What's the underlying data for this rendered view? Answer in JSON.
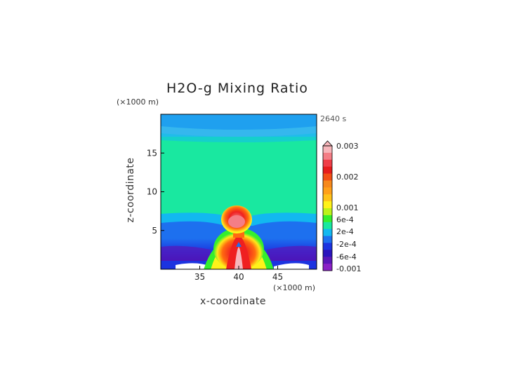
{
  "chart_data": {
    "type": "heatmap",
    "title": "H2O-g Mixing Ratio",
    "xlabel": "x-coordinate",
    "ylabel": "z-coordinate",
    "x_multiplier": "(×1000 m)",
    "y_multiplier": "(×1000 m)",
    "time_label": "2640 s",
    "xlim": [
      30,
      50
    ],
    "ylim": [
      0,
      20
    ],
    "x_ticks": [
      "35",
      "40",
      "45"
    ],
    "y_ticks": [
      "5",
      "10",
      "15"
    ],
    "x_tick_values": [
      35,
      40,
      45
    ],
    "y_tick_values": [
      5,
      10,
      15
    ],
    "colorbar": {
      "labels": [
        "0.003",
        "0.002",
        "0.001",
        "6e-4",
        "2e-4",
        "-2e-4",
        "-6e-4",
        "-0.001"
      ],
      "colors": [
        "#f7b6bb",
        "#f47e86",
        "#ef3e48",
        "#e61c1c",
        "#f24f16",
        "#f7891c",
        "#ffa01a",
        "#ffc21a",
        "#fff21a",
        "#bdf21a",
        "#35ef2d",
        "#18e8a0",
        "#12b8f0",
        "#1d70ef",
        "#1c33e0",
        "#2a15bd",
        "#5a17b8",
        "#8a22c6"
      ]
    },
    "regions": {
      "stratosphere_upper": "#35b7ee",
      "stratosphere_band": "#12aaf0",
      "troposphere_main": "#19e8a0",
      "boundary_blue": "#1a55e8",
      "boundary_deep": "#2b12b8",
      "plume_core": "#ef2020",
      "plume_edge": "#ffe81a"
    }
  }
}
